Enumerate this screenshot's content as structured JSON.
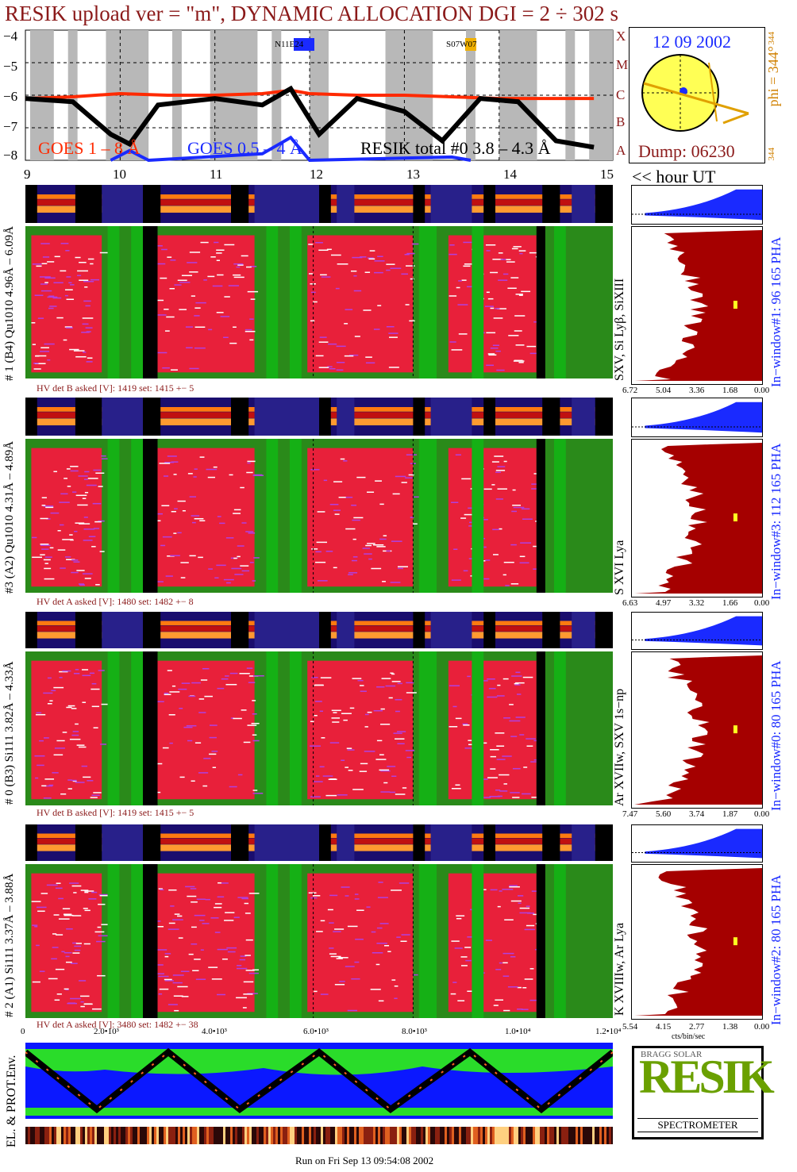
{
  "header": {
    "title": "RESIK upload ver = \"m\", DYNAMIC ALLOCATION  DGI =   2 ÷ 302 s"
  },
  "lightcurve": {
    "y_ticks": [
      "−4",
      "−5",
      "−6",
      "−7",
      "−8"
    ],
    "class_letters": [
      "A",
      "B",
      "C",
      "M",
      "X"
    ],
    "legend": {
      "goes_long": "GOES 1 – 8 Å",
      "goes_short": "GOES 0.5 – 4 Å",
      "resik": "RESIK total #0  3.8 – 4.3 Å"
    },
    "active_regions": [
      "N11E24",
      "S07W07"
    ],
    "colors": {
      "goes_long": "#ff2a00",
      "goes_short": "#1a2aff",
      "resik": "#000000",
      "region1": "#1a2aff",
      "region2": "#f0b000"
    }
  },
  "sun_panel": {
    "date": "12 09 2002",
    "phi_label": "phi = 344°",
    "phi_small_top": "344",
    "phi_small_bottom": "344",
    "dump": "Dump: 06230"
  },
  "time_axis": {
    "ticks": [
      "9",
      "10",
      "11",
      "12",
      "13",
      "14",
      "15"
    ],
    "unit_label": "<< hour UT"
  },
  "channels": [
    {
      "label": "# 1 (B4) Qu1010 4.96Å – 6.09Å",
      "lines": "SXV, Si Lyβ, SiXIII",
      "hv": "HV det B asked [V]:  1419 set:  1415  +−    5",
      "window": "In−window#1:   96 165  PHA",
      "x_ticks": [
        "6.72",
        "5.04",
        "3.36",
        "1.68",
        "0.00"
      ]
    },
    {
      "label": "#3 (A2) Qu1010  4.31Å – 4.89Å",
      "lines": "S XVI Lya",
      "hv": "HV det A asked [V]:  1480  set:  1482  +−    8",
      "window": "In−window#3:  112 165  PHA",
      "x_ticks": [
        "6.63",
        "4.97",
        "3.32",
        "1.66",
        "0.00"
      ]
    },
    {
      "label": "# 0 (B3) Si111  3.82Å – 4.33Å",
      "lines": "Ar XVIIw,  SXV 1s−np",
      "hv": "HV det B asked [V]:  1419 set:  1415  +−    5",
      "window": "In−window#0:   80 165  PHA",
      "x_ticks": [
        "7.47",
        "5.60",
        "3.74",
        "1.87",
        "0.00"
      ]
    },
    {
      "label": "# 2 (A1) Si111  3.37Å – 3.88Å",
      "lines": "K XVIIIw,  Ar Lya",
      "hv": "HV det A asked [V]:  3480 set:  1482  +−  38",
      "window": "In−window#2:   80 165  PHA",
      "x_ticks": [
        "5.54",
        "4.15",
        "2.77",
        "1.38",
        "0.00"
      ],
      "x_unit": "cts/bin/sec"
    }
  ],
  "env_panel": {
    "label": "EL. & PROT.Env.",
    "x_ticks": [
      "0",
      "2.0•10³",
      "4.0•10³",
      "6.0•10³",
      "8.0•10³",
      "1.0•10⁴",
      "1.2•10⁴"
    ]
  },
  "logo": {
    "letters": "RESIK",
    "word": "SPECTROMETER",
    "small": "BRAGG SOLAR"
  },
  "footer": {
    "run": "Run on Fri Sep 13 09:54:08 2002"
  },
  "chart_data": {
    "type": "line",
    "title": "RESIK upload ver = \"m\", DYNAMIC ALLOCATION  DGI =   2 ÷ 302 s",
    "xlabel": "<< hour UT",
    "ylabel": "",
    "xlim": [
      9,
      15.2
    ],
    "ylim": [
      -8,
      -4
    ],
    "series": [
      {
        "name": "GOES 1 – 8 Å",
        "x": [
          9,
          9.5,
          10,
          10.5,
          11,
          11.5,
          11.8,
          12,
          12.5,
          13,
          13.5,
          14,
          14.5,
          15
        ],
        "values": [
          -6.1,
          -6.05,
          -5.95,
          -6.0,
          -6.0,
          -5.95,
          -5.85,
          -5.95,
          -6.0,
          -6.0,
          -6.05,
          -6.1,
          -6.1,
          -6.1
        ]
      },
      {
        "name": "GOES 0.5 – 4 Å",
        "x": [
          9.9,
          10.1,
          10.3,
          11.5,
          11.8,
          12.0,
          13.5,
          13.7
        ],
        "values": [
          -8.0,
          -7.7,
          -8.0,
          -7.8,
          -7.3,
          -8.0,
          -7.9,
          -8.0
        ]
      },
      {
        "name": "RESIK total #0  3.8 – 4.3 Å",
        "x": [
          9,
          9.5,
          9.9,
          10.1,
          10.4,
          11,
          11.5,
          11.8,
          12.1,
          12.5,
          13.0,
          13.4,
          13.8,
          14.2,
          14.6,
          15
        ],
        "values": [
          -6.1,
          -6.2,
          -7.2,
          -7.5,
          -6.3,
          -6.1,
          -6.3,
          -5.8,
          -7.2,
          -6.1,
          -6.5,
          -7.4,
          -6.1,
          -6.2,
          -7.4,
          -7.6
        ]
      }
    ]
  }
}
